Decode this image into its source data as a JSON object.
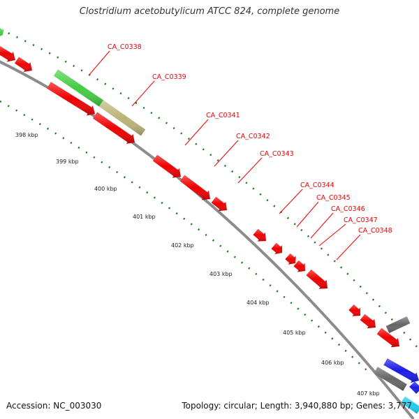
{
  "title": "Clostridium acetobutylicum ATCC 824, complete genome",
  "accession_text": "Accession: NC_003030",
  "summary_text": "Topology: circular; Length: 3,940,880 bp; Genes: 3,777",
  "colors": {
    "backbone": "#8c8c8c",
    "cds": "#ee0000",
    "green_feature": "#44cc44",
    "olive_feature": "#bbb477",
    "gray_feature": "#666666",
    "blue_feature": "#1a1ae6",
    "cyan_feature": "#22ccee",
    "tick": "#117711",
    "label": "#ee0000"
  },
  "ticks": [
    "398 kbp",
    "399 kbp",
    "400 kbp",
    "401 kbp",
    "402 kbp",
    "403 kbp",
    "404 kbp",
    "405 kbp",
    "406 kbp",
    "407 kbp"
  ],
  "gene_labels": [
    "CA_C0338",
    "CA_C0339",
    "CA_C0341",
    "CA_C0342",
    "CA_C0343",
    "CA_C0344",
    "CA_C0345",
    "CA_C0346",
    "CA_C0347",
    "CA_C0348"
  ]
}
